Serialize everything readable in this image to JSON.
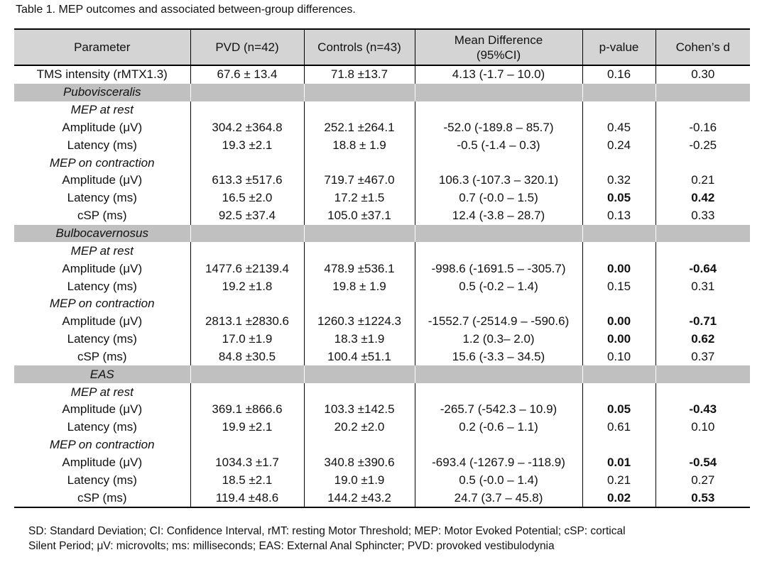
{
  "caption": "Table 1. MEP outcomes and associated between-group differences.",
  "headers": [
    "Parameter",
    "PVD (n=42)",
    "Controls (n=43)",
    "Mean Difference\n(95%CI)",
    "p-value",
    "Cohen’s d"
  ],
  "rows": [
    {
      "type": "data",
      "cells": [
        "TMS intensity (rMTX1.3)",
        "67.6 ± 13.4",
        "71.8 ±13.7",
        "4.13 (-1.7 – 10.0)",
        "0.16",
        "0.30"
      ],
      "bold": []
    },
    {
      "type": "section",
      "cells": [
        "Pubovisceralis",
        "",
        "",
        "",
        "",
        ""
      ],
      "bold": []
    },
    {
      "type": "sub",
      "cells": [
        "MEP at rest",
        "",
        "",
        "",
        "",
        ""
      ],
      "bold": []
    },
    {
      "type": "data",
      "cells": [
        "Amplitude (μV)",
        "304.2 ±364.8",
        "252.1 ±264.1",
        "-52.0 (-189.8 – 85.7)",
        "0.45",
        "-0.16"
      ],
      "bold": []
    },
    {
      "type": "data",
      "cells": [
        "Latency (ms)",
        "19.3 ±2.1",
        "18.8 ± 1.9",
        "-0.5 (-1.4 – 0.3)",
        "0.24",
        "-0.25"
      ],
      "bold": []
    },
    {
      "type": "sub",
      "cells": [
        "MEP on contraction",
        "",
        "",
        "",
        "",
        ""
      ],
      "bold": []
    },
    {
      "type": "data",
      "cells": [
        "Amplitude (μV)",
        "613.3 ±517.6",
        "719.7 ±467.0",
        "106.3 (-107.3 – 320.1)",
        "0.32",
        "0.21"
      ],
      "bold": []
    },
    {
      "type": "data",
      "cells": [
        "Latency (ms)",
        "16.5 ±2.0",
        "17.2 ±1.5",
        "0.7 (-0.0 – 1.5)",
        "0.05",
        "0.42"
      ],
      "bold": [
        4,
        5
      ]
    },
    {
      "type": "data",
      "cells": [
        "cSP (ms)",
        "92.5 ±37.4",
        "105.0 ±37.1",
        "12.4 (-3.8 – 28.7)",
        "0.13",
        "0.33"
      ],
      "bold": []
    },
    {
      "type": "section",
      "cells": [
        "Bulbocavernosus",
        "",
        "",
        "",
        "",
        ""
      ],
      "bold": []
    },
    {
      "type": "sub",
      "cells": [
        "MEP at rest",
        "",
        "",
        "",
        "",
        ""
      ],
      "bold": []
    },
    {
      "type": "data",
      "cells": [
        "Amplitude (μV)",
        "1477.6 ±2139.4",
        "478.9 ±536.1",
        "-998.6 (-1691.5 – -305.7)",
        "0.00",
        "-0.64"
      ],
      "bold": [
        4,
        5
      ]
    },
    {
      "type": "data",
      "cells": [
        "Latency (ms)",
        "19.2 ±1.8",
        "19.8 ± 1.9",
        "0.5 (-0.2 – 1.4)",
        "0.15",
        "0.31"
      ],
      "bold": []
    },
    {
      "type": "sub",
      "cells": [
        "MEP on contraction",
        "",
        "",
        "",
        "",
        ""
      ],
      "bold": []
    },
    {
      "type": "data",
      "cells": [
        "Amplitude (μV)",
        "2813.1 ±2830.6",
        "1260.3 ±1224.3",
        "-1552.7 (-2514.9 – -590.6)",
        "0.00",
        "-0.71"
      ],
      "bold": [
        4,
        5
      ]
    },
    {
      "type": "data",
      "cells": [
        "Latency (ms)",
        "17.0 ±1.9",
        "18.3 ±1.9",
        "1.2 (0.3– 2.0)",
        "0.00",
        "0.62"
      ],
      "bold": [
        4,
        5
      ]
    },
    {
      "type": "data",
      "cells": [
        "cSP (ms)",
        "84.8 ±30.5",
        "100.4 ±51.1",
        "15.6 (-3.3 – 34.5)",
        "0.10",
        "0.37"
      ],
      "bold": []
    },
    {
      "type": "section",
      "cells": [
        "EAS",
        "",
        "",
        "",
        "",
        ""
      ],
      "bold": []
    },
    {
      "type": "sub",
      "cells": [
        "MEP at rest",
        "",
        "",
        "",
        "",
        ""
      ],
      "bold": []
    },
    {
      "type": "data",
      "cells": [
        "Amplitude (μV)",
        "369.1 ±866.6",
        "103.3 ±142.5",
        "-265.7 (-542.3 – 10.9)",
        "0.05",
        "-0.43"
      ],
      "bold": [
        4,
        5
      ]
    },
    {
      "type": "data",
      "cells": [
        "Latency (ms)",
        "19.9  ±2.1",
        "20.2  ±2.0",
        "0.2 (-0.6 – 1.1)",
        "0.61",
        "0.10"
      ],
      "bold": []
    },
    {
      "type": "sub",
      "cells": [
        "MEP on contraction",
        "",
        "",
        "",
        "",
        ""
      ],
      "bold": []
    },
    {
      "type": "data",
      "cells": [
        "Amplitude (μV)",
        "1034.3 ±1.7",
        "340.8  ±390.6",
        "-693.4 (-1267.9 – -118.9)",
        "0.01",
        "-0.54"
      ],
      "bold": [
        4,
        5
      ]
    },
    {
      "type": "data",
      "cells": [
        "Latency (ms)",
        "18.5  ±2.1",
        "19.0  ±1.9",
        "0.5 (-0.0 – 1.4)",
        "0.21",
        "0.27"
      ],
      "bold": []
    },
    {
      "type": "data",
      "cells": [
        "cSP (ms)",
        "119.4  ±48.6",
        "144.2 ±43.2",
        "24.7 (3.7 – 45.8)",
        "0.02",
        "0.53"
      ],
      "bold": [
        4,
        5
      ]
    }
  ],
  "footnote": {
    "line1": "SD: Standard Deviation; CI: Confidence Interval, rMT: resting Motor Threshold; MEP: Motor Evoked Potential; cSP: cortical",
    "line2": "Silent Period; μV: microvolts; ms: milliseconds; EAS: External Anal Sphincter; PVD: provoked vestibulodynia"
  },
  "colors": {
    "header_bg": "#d4d4d4",
    "section_bg": "#c0c0c0",
    "rule": "#000000"
  }
}
